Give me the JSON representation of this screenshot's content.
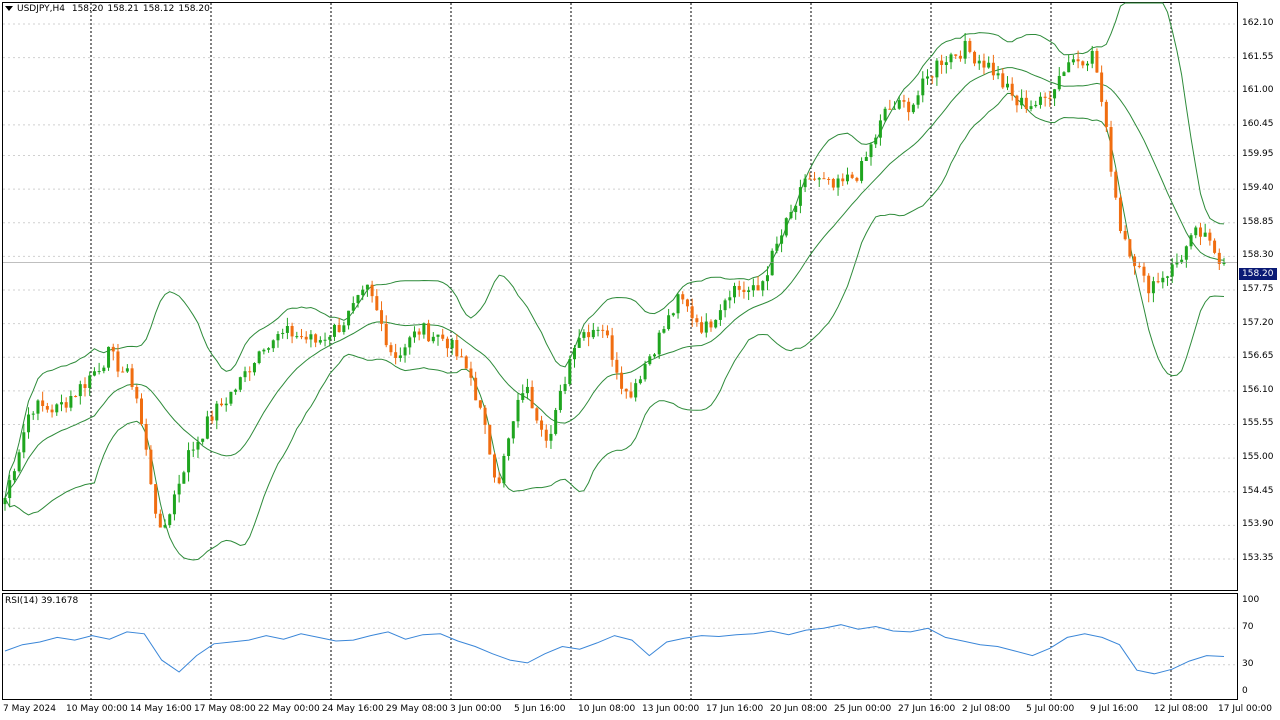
{
  "header": {
    "symbol": "USDJPY,H4",
    "open": "158.20",
    "high": "158.21",
    "low": "158.12",
    "close": "158.20"
  },
  "rsi": {
    "label": "RSI(14) 39.1678",
    "levels": [
      "100",
      "70",
      "30",
      "0"
    ]
  },
  "price_axis": [
    "162.10",
    "161.55",
    "161.00",
    "160.45",
    "159.95",
    "159.40",
    "158.85",
    "158.30",
    "157.75",
    "157.20",
    "156.65",
    "156.10",
    "155.55",
    "155.00",
    "154.45",
    "153.90",
    "153.35"
  ],
  "current_price": "158.20",
  "time_axis": [
    "7 May 2024",
    "10 May 00:00",
    "14 May 16:00",
    "17 May 08:00",
    "22 May 00:00",
    "24 May 16:00",
    "29 May 08:00",
    "3 Jun 00:00",
    "5 Jun 16:00",
    "10 Jun 08:00",
    "13 Jun 00:00",
    "17 Jun 16:00",
    "20 Jun 08:00",
    "25 Jun 00:00",
    "27 Jun 16:00",
    "2 Jul 08:00",
    "5 Jul 00:00",
    "9 Jul 16:00",
    "12 Jul 08:00",
    "17 Jul 00:00"
  ],
  "colors": {
    "bull": "#1fa51f",
    "bear": "#f06d10",
    "band": "#2e8b3a",
    "rsi": "#3a86d8",
    "grid": "#d0d0d0",
    "price_tag": "#0a1a75"
  },
  "chart_data": [
    {
      "type": "candlestick",
      "title": "USDJPY,H4",
      "ylim": [
        153.35,
        162.1
      ],
      "bollinger_bands": true,
      "grid": true,
      "anchors": [
        [
          "7 May 2024",
          154.35
        ],
        [
          "9 May 00:00",
          155.85
        ],
        [
          "10 May 00:00",
          155.8
        ],
        [
          "13 May 00:00",
          156.2
        ],
        [
          "14 May 00:00",
          156.7
        ],
        [
          "14 May 16:00",
          156.2
        ],
        [
          "15 May 16:00",
          153.7
        ],
        [
          "16 May 16:00",
          155.0
        ],
        [
          "17 May 08:00",
          155.7
        ],
        [
          "20 May 00:00",
          156.2
        ],
        [
          "22 May 00:00",
          156.9
        ],
        [
          "23 May 00:00",
          157.05
        ],
        [
          "24 May 16:00",
          156.9
        ],
        [
          "28 May 00:00",
          157.2
        ],
        [
          "29 May 08:00",
          157.75
        ],
        [
          "30 May 08:00",
          156.65
        ],
        [
          "31 May 08:00",
          157.1
        ],
        [
          "3 Jun 00:00",
          156.95
        ],
        [
          "4 Jun 00:00",
          156.3
        ],
        [
          "4 Jun 16:00",
          154.6
        ],
        [
          "5 Jun 16:00",
          156.2
        ],
        [
          "6 Jun 16:00",
          155.3
        ],
        [
          "7 Jun 08:00",
          157.0
        ],
        [
          "10 Jun 08:00",
          157.2
        ],
        [
          "11 Jun 16:00",
          156.0
        ],
        [
          "12 Jun 08:00",
          156.8
        ],
        [
          "13 Jun 00:00",
          157.6
        ],
        [
          "14 Jun 08:00",
          157.1
        ],
        [
          "17 Jun 16:00",
          157.8
        ],
        [
          "18 Jun 16:00",
          157.7
        ],
        [
          "20 Jun 08:00",
          158.7
        ],
        [
          "21 Jun 00:00",
          159.6
        ],
        [
          "24 Jun 08:00",
          159.4
        ],
        [
          "25 Jun 00:00",
          159.7
        ],
        [
          "26 Jun 00:00",
          160.7
        ],
        [
          "27 Jun 16:00",
          160.8
        ],
        [
          "28 Jun 16:00",
          161.5
        ],
        [
          "2 Jul 08:00",
          161.7
        ],
        [
          "3 Jul 16:00",
          161.4
        ],
        [
          "5 Jul 00:00",
          160.8
        ],
        [
          "8 Jul 00:00",
          160.8
        ],
        [
          "9 Jul 16:00",
          161.5
        ],
        [
          "11 Jul 00:00",
          161.6
        ],
        [
          "11 Jul 08:00",
          158.8
        ],
        [
          "12 Jul 08:00",
          157.8
        ],
        [
          "15 Jul 16:00",
          158.1
        ],
        [
          "16 Jul 16:00",
          158.7
        ],
        [
          "17 Jul 00:00",
          158.2
        ]
      ]
    },
    {
      "type": "line",
      "title": "RSI(14) 39.1678",
      "ylim": [
        0,
        100
      ],
      "levels": [
        30,
        70
      ],
      "values": [
        45,
        52,
        55,
        60,
        57,
        62,
        58,
        66,
        64,
        35,
        22,
        40,
        53,
        55,
        57,
        62,
        58,
        64,
        60,
        56,
        57,
        62,
        66,
        58,
        63,
        64,
        56,
        50,
        42,
        35,
        32,
        42,
        50,
        47,
        54,
        62,
        57,
        40,
        55,
        59,
        62,
        61,
        63,
        64,
        67,
        63,
        68,
        70,
        74,
        69,
        72,
        67,
        66,
        70,
        60,
        56,
        52,
        50,
        45,
        40,
        48,
        60,
        64,
        60,
        52,
        24,
        20,
        25,
        34,
        40,
        39
      ]
    }
  ]
}
